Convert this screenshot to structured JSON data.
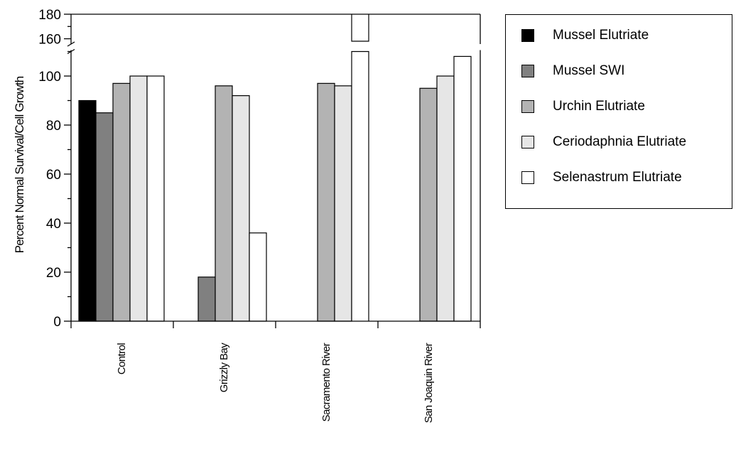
{
  "chart_data": {
    "type": "bar",
    "ylabel": "Percent Normal Survival/Cell Growth",
    "categories": [
      "Control",
      "Grizzly Bay",
      "Sacramento River",
      "San Joaquin River"
    ],
    "series": [
      {
        "name": "Mussel Elutriate",
        "color": "#000000",
        "values": [
          90,
          null,
          null,
          null
        ]
      },
      {
        "name": "Mussel SWI",
        "color": "#808080",
        "values": [
          85,
          18,
          null,
          null
        ]
      },
      {
        "name": "Urchin Elutriate",
        "color": "#b3b3b3",
        "values": [
          97,
          96,
          97,
          95
        ]
      },
      {
        "name": "Ceriodaphnia Elutriate",
        "color": "#e6e6e6",
        "values": [
          100,
          92,
          96,
          100
        ]
      },
      {
        "name": "Selenastrum Elutriate",
        "color": "#ffffff",
        "values": [
          100,
          36,
          180,
          108
        ]
      }
    ],
    "ylim": [
      0,
      180
    ],
    "y_axis_break": [
      110,
      160
    ],
    "yticks": [
      "0",
      "20",
      "40",
      "60",
      "80",
      "100",
      "160",
      "180"
    ],
    "grid": false,
    "legend_position": "right"
  }
}
